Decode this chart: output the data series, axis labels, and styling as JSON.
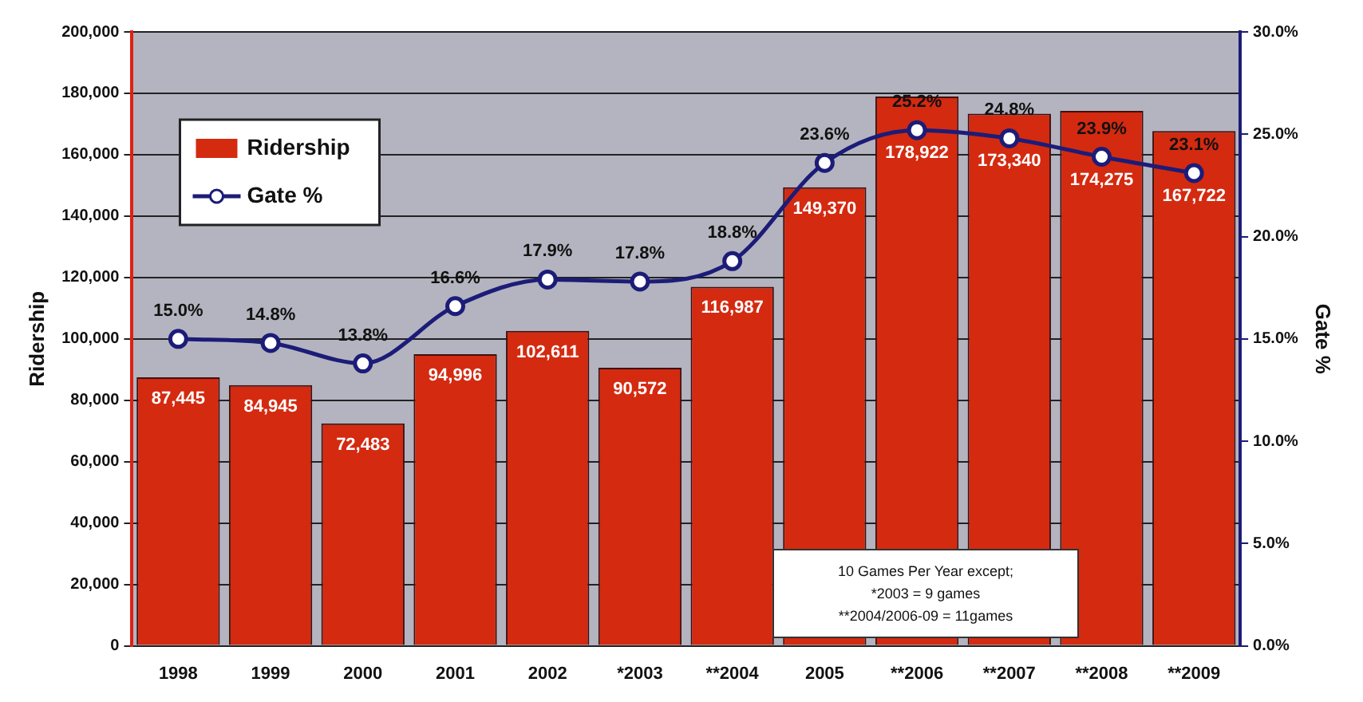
{
  "chart_data": {
    "type": "bar",
    "ylabel": "Ridership",
    "y2label": "Gate %",
    "categories": [
      "1998",
      "1999",
      "2000",
      "2001",
      "2002",
      "*2003",
      "**2004",
      "2005",
      "**2006",
      "**2007",
      "**2008",
      "**2009"
    ],
    "series": [
      {
        "name": "Ridership",
        "color": "#d42a10",
        "values": [
          87445,
          84945,
          72483,
          94996,
          102611,
          90572,
          116987,
          149370,
          178922,
          173340,
          174275,
          167722
        ],
        "value_labels": [
          "87,445",
          "84,945",
          "72,483",
          "94,996",
          "102,611",
          "90,572",
          "116,987",
          "149,370",
          "178,922",
          "173,340",
          "174,275",
          "167,722"
        ]
      },
      {
        "name": "Gate %",
        "type": "line",
        "axis": "y2",
        "color": "#1c1c78",
        "marker": "circle",
        "values": [
          15.0,
          14.8,
          13.8,
          16.6,
          17.9,
          17.8,
          18.8,
          23.6,
          25.2,
          24.8,
          23.9,
          23.1
        ],
        "value_labels": [
          "15.0%",
          "14.8%",
          "13.8%",
          "16.6%",
          "17.9%",
          "17.8%",
          "18.8%",
          "23.6%",
          "25.2%",
          "24.8%",
          "23.9%",
          "23.1%"
        ]
      }
    ],
    "ylim": [
      0,
      200000
    ],
    "yticks": [
      {
        "value": 0,
        "label": "0"
      },
      {
        "value": 20000,
        "label": "20,000"
      },
      {
        "value": 40000,
        "label": "40,000"
      },
      {
        "value": 60000,
        "label": "60,000"
      },
      {
        "value": 80000,
        "label": "80,000"
      },
      {
        "value": 100000,
        "label": "100,000"
      },
      {
        "value": 120000,
        "label": "120,000"
      },
      {
        "value": 140000,
        "label": "140,000"
      },
      {
        "value": 160000,
        "label": "160,000"
      },
      {
        "value": 180000,
        "label": "180,000"
      },
      {
        "value": 200000,
        "label": "200,000"
      }
    ],
    "y2lim": [
      0,
      30
    ],
    "y2ticks": [
      {
        "value": 0,
        "label": "0.0%"
      },
      {
        "value": 5,
        "label": "5.0%"
      },
      {
        "value": 10,
        "label": "10.0%"
      },
      {
        "value": 15,
        "label": "15.0%"
      },
      {
        "value": 20,
        "label": "20.0%"
      },
      {
        "value": 25,
        "label": "25.0%"
      },
      {
        "value": 30,
        "label": "30.0%"
      }
    ],
    "grid": "y",
    "legend": "top left",
    "annotations": [
      "10 Games Per Year except;",
      "*2003 = 9 games",
      "**2004/2006-09 = 11games"
    ]
  }
}
